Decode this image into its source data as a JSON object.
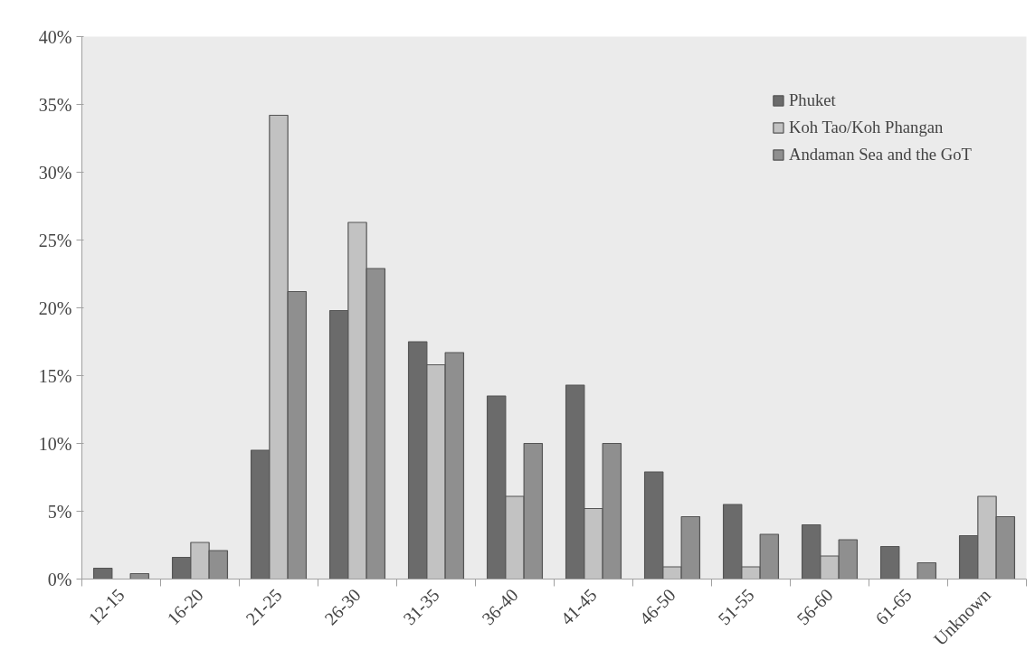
{
  "chart_data": {
    "type": "bar",
    "categories": [
      "12-15",
      "16-20",
      "21-25",
      "26-30",
      "31-35",
      "36-40",
      "41-45",
      "46-50",
      "51-55",
      "56-60",
      "61-65",
      "Unknown"
    ],
    "series": [
      {
        "name": "Phuket",
        "color": "#6b6b6b",
        "values": [
          0.8,
          1.6,
          9.5,
          19.8,
          17.5,
          13.5,
          14.3,
          7.9,
          5.5,
          4.0,
          2.4,
          3.2
        ]
      },
      {
        "name": "Koh Tao/Koh Phangan",
        "color": "#c2c2c2",
        "values": [
          null,
          2.7,
          34.2,
          26.3,
          15.8,
          6.1,
          5.2,
          0.9,
          0.9,
          1.7,
          null,
          6.1
        ]
      },
      {
        "name": "Andaman Sea and the GoT",
        "color": "#8f8f8f",
        "values": [
          0.4,
          2.1,
          21.2,
          22.9,
          16.7,
          10.0,
          10.0,
          4.6,
          3.3,
          2.9,
          1.2,
          4.6
        ]
      }
    ],
    "ylim": [
      0,
      40
    ],
    "yticks": [
      {
        "value": 0,
        "label": "0%"
      },
      {
        "value": 5,
        "label": "5%"
      },
      {
        "value": 10,
        "label": "10%"
      },
      {
        "value": 15,
        "label": "15%"
      },
      {
        "value": 20,
        "label": "20%"
      },
      {
        "value": 25,
        "label": "25%"
      },
      {
        "value": 30,
        "label": "30%"
      },
      {
        "value": 35,
        "label": "35%"
      },
      {
        "value": 40,
        "label": "40%"
      }
    ],
    "grid": false,
    "legend": "top right"
  }
}
